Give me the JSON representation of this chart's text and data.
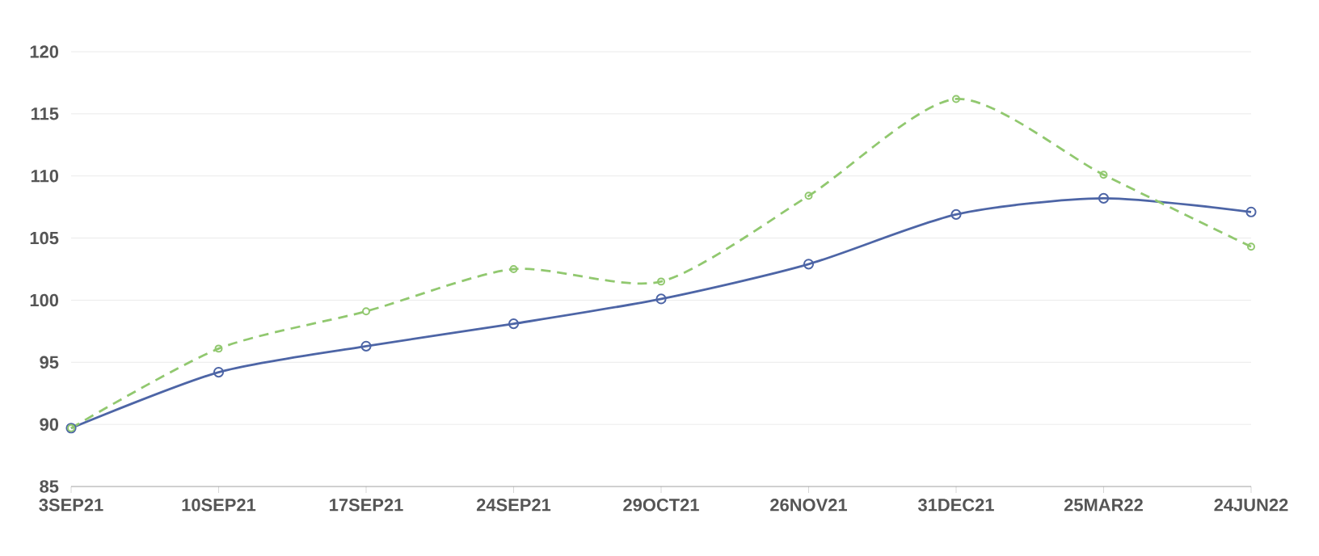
{
  "chart_data": {
    "type": "line",
    "categories": [
      "3SEP21",
      "10SEP21",
      "17SEP21",
      "24SEP21",
      "29OCT21",
      "26NOV21",
      "31DEC21",
      "25MAR22",
      "24JUN22"
    ],
    "series": [
      {
        "color": "#4d65a6",
        "line_style": "solid",
        "values": [
          89.7,
          94.2,
          96.3,
          98.1,
          100.1,
          102.9,
          106.9,
          108.2,
          107.1
        ]
      },
      {
        "color": "#91c86f",
        "line_style": "dashed",
        "values": [
          89.7,
          96.1,
          99.1,
          102.5,
          101.5,
          108.4,
          116.2,
          110.1,
          104.3
        ]
      }
    ],
    "ylim": [
      85,
      120
    ],
    "yticks": [
      85,
      90,
      95,
      100,
      105,
      110,
      115,
      120
    ],
    "grid": "y",
    "marker": "circle"
  }
}
